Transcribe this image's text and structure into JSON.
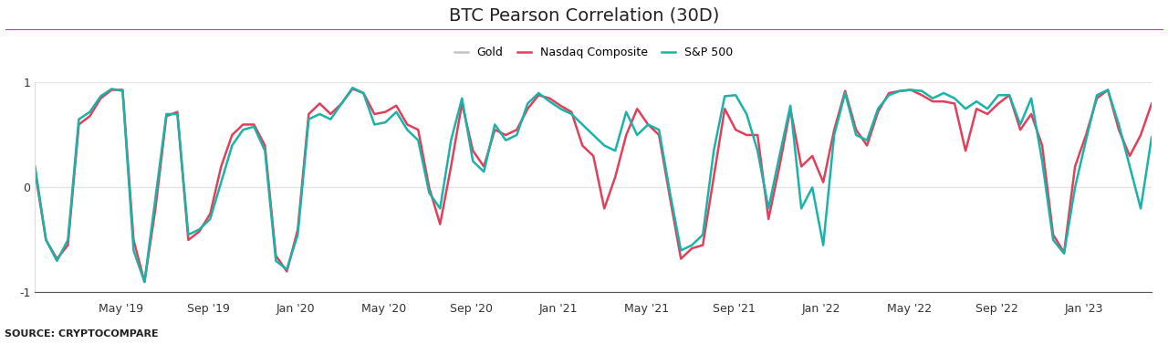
{
  "chart_data": {
    "type": "line",
    "title": "BTC Pearson Correlation (30D)",
    "source": "SOURCE: CRYPTOCOMPARE",
    "x": [
      0.08,
      0.58,
      1.08,
      1.58,
      2.08,
      2.58,
      3.08,
      3.58,
      4.08,
      4.58,
      5.08,
      5.58,
      6.08,
      6.58,
      7.08,
      7.58,
      8.08,
      8.58,
      9.08,
      9.58,
      10.08,
      10.58,
      11.08,
      11.58,
      12.08,
      12.58,
      13.08,
      13.58,
      14.08,
      14.58,
      15.08,
      15.58,
      16.08,
      16.58,
      17.08,
      17.58,
      18.08,
      18.58,
      19.08,
      19.58,
      20.08,
      20.58,
      21.08,
      21.58,
      22.08,
      22.58,
      23.08,
      23.58,
      24.08,
      24.58,
      25.08,
      25.58,
      26.08,
      26.58,
      27.08,
      27.58,
      28.08,
      28.58,
      29.08,
      29.58,
      30.08,
      30.58,
      31.08,
      31.58,
      32.08,
      32.58,
      33.08,
      33.58,
      34.08,
      34.58,
      35.08,
      35.58,
      36.08,
      36.58,
      37.08,
      37.58,
      38.08,
      38.58,
      39.08,
      39.58,
      40.08,
      40.58,
      41.08,
      41.58,
      42.08,
      42.58,
      43.08,
      43.58,
      44.08,
      44.58,
      45.08,
      45.58,
      46.08,
      46.58,
      47.08,
      47.58,
      48.08,
      48.58,
      49.08,
      49.58,
      50.08,
      50.58,
      51.08
    ],
    "series": [
      {
        "name": "Gold",
        "color": "#c4c4c4",
        "values": [
          null,
          null,
          null,
          null,
          null,
          null,
          null,
          null,
          null,
          null,
          null,
          null,
          null,
          null,
          null,
          null,
          null,
          null,
          null,
          null,
          null,
          null,
          null,
          null,
          null,
          null,
          null,
          null,
          null,
          null,
          null,
          null,
          null,
          null,
          null,
          null,
          null,
          null,
          null,
          null,
          null,
          null,
          null,
          null,
          null,
          null,
          null,
          null,
          null,
          null,
          null,
          null,
          null,
          null,
          null,
          null,
          null,
          null,
          null,
          null,
          null,
          null,
          null,
          null,
          null,
          null,
          null,
          null,
          null,
          null,
          null,
          null,
          null,
          null,
          null,
          null,
          null,
          null,
          null,
          null,
          null,
          null,
          null,
          null,
          null,
          null,
          null,
          null,
          null,
          null,
          null,
          null,
          null,
          null,
          null,
          null,
          null,
          null,
          null,
          null,
          null,
          null,
          null
        ]
      },
      {
        "name": "Nasdaq Composite",
        "color": "#e0405a",
        "values": [
          0.15,
          -0.5,
          -0.68,
          -0.55,
          0.6,
          0.68,
          0.85,
          0.93,
          0.93,
          -0.5,
          -0.9,
          -0.2,
          0.68,
          0.72,
          -0.5,
          -0.42,
          -0.25,
          0.2,
          0.5,
          0.6,
          0.6,
          0.4,
          -0.65,
          -0.8,
          -0.4,
          0.7,
          0.8,
          0.7,
          0.8,
          0.94,
          0.9,
          0.7,
          0.72,
          0.78,
          0.6,
          0.55,
          0.0,
          -0.35,
          0.2,
          0.8,
          0.35,
          0.2,
          0.55,
          0.5,
          0.55,
          0.75,
          0.88,
          0.85,
          0.78,
          0.72,
          0.4,
          0.3,
          -0.2,
          0.1,
          0.5,
          0.75,
          0.6,
          0.5,
          -0.1,
          -0.68,
          -0.58,
          -0.55,
          0.1,
          0.75,
          0.55,
          0.5,
          0.5,
          -0.3,
          0.2,
          0.75,
          0.2,
          0.3,
          0.05,
          0.55,
          0.92,
          0.55,
          0.4,
          0.72,
          0.9,
          0.92,
          0.93,
          0.88,
          0.82,
          0.82,
          0.8,
          0.35,
          0.75,
          0.7,
          0.8,
          0.88,
          0.55,
          0.7,
          0.4,
          -0.45,
          -0.62,
          0.2,
          0.5,
          0.85,
          0.93,
          0.55,
          0.3,
          0.5,
          0.8
        ]
      },
      {
        "name": "S&P 500",
        "color": "#1ab3a8",
        "values": [
          0.2,
          -0.5,
          -0.7,
          -0.5,
          0.65,
          0.72,
          0.87,
          0.94,
          0.92,
          -0.6,
          -0.9,
          -0.1,
          0.7,
          0.7,
          -0.45,
          -0.4,
          -0.3,
          0.05,
          0.4,
          0.55,
          0.58,
          0.35,
          -0.7,
          -0.78,
          -0.45,
          0.65,
          0.7,
          0.65,
          0.8,
          0.95,
          0.9,
          0.6,
          0.62,
          0.72,
          0.55,
          0.45,
          -0.05,
          -0.2,
          0.45,
          0.85,
          0.25,
          0.15,
          0.6,
          0.45,
          0.5,
          0.8,
          0.9,
          0.82,
          0.75,
          0.7,
          0.6,
          0.5,
          0.4,
          0.35,
          0.72,
          0.5,
          0.6,
          0.55,
          -0.05,
          -0.6,
          -0.55,
          -0.45,
          0.35,
          0.87,
          0.88,
          0.7,
          0.35,
          -0.2,
          0.3,
          0.78,
          -0.2,
          0.0,
          -0.55,
          0.5,
          0.9,
          0.5,
          0.45,
          0.75,
          0.88,
          0.92,
          0.93,
          0.92,
          0.85,
          0.9,
          0.85,
          0.75,
          0.82,
          0.75,
          0.88,
          0.88,
          0.6,
          0.85,
          0.25,
          -0.5,
          -0.63,
          0.0,
          0.45,
          0.88,
          0.93,
          0.6,
          0.2,
          -0.2,
          0.48
        ]
      }
    ],
    "xlim": [
      0.08,
      51.08
    ],
    "xticks": [
      {
        "value": 4,
        "label": "May '19"
      },
      {
        "value": 8,
        "label": "Sep '19"
      },
      {
        "value": 12,
        "label": "Jan '20"
      },
      {
        "value": 16,
        "label": "May '20"
      },
      {
        "value": 20,
        "label": "Sep '20"
      },
      {
        "value": 24,
        "label": "Jan '21"
      },
      {
        "value": 28,
        "label": "May '21"
      },
      {
        "value": 32,
        "label": "Sep '21"
      },
      {
        "value": 36,
        "label": "Jan '22"
      },
      {
        "value": 40,
        "label": "May '22"
      },
      {
        "value": 44,
        "label": "Sep '22"
      },
      {
        "value": 48,
        "label": "Jan '23"
      }
    ],
    "ylim": [
      -1,
      1
    ],
    "yticks": [
      -1,
      0,
      1
    ],
    "grid": true,
    "legend": "upper center"
  }
}
